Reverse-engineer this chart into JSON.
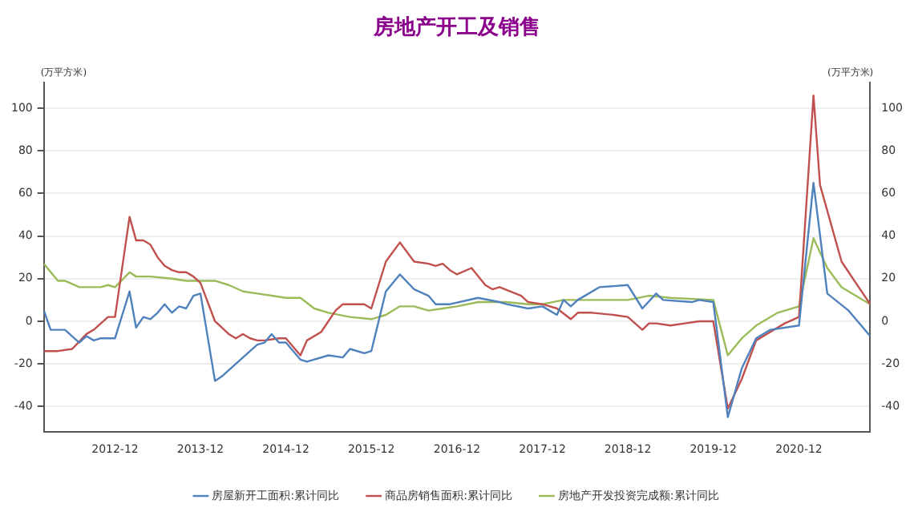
{
  "chart_data": {
    "type": "line",
    "title": "房地产开工及销售",
    "ylabel": "(万平方米)",
    "y2label": "(万平方米)",
    "xlim": [
      "2012-02",
      "2021-10"
    ],
    "xticks": [
      "2012-12",
      "2013-12",
      "2014-12",
      "2015-12",
      "2016-12",
      "2017-12",
      "2018-12",
      "2019-12",
      "2020-12"
    ],
    "ylim": [
      -52,
      112
    ],
    "yticks": [
      -40,
      -20,
      0,
      20,
      40,
      60,
      80,
      100
    ],
    "y2lim": [
      -52,
      112
    ],
    "y2ticks": [
      -40,
      -20,
      0,
      20,
      40,
      60,
      80,
      100
    ],
    "grid": "y",
    "legend": "bottom",
    "marker": "none",
    "line_style": "solid",
    "series": [
      {
        "name": "房屋新开工面积:累计同比",
        "color": "#4f81bd",
        "x": [
          "2012-02",
          "2012-03",
          "2012-05",
          "2012-07",
          "2012-08",
          "2012-09",
          "2012-10",
          "2012-12",
          "2013-02",
          "2013-03",
          "2013-04",
          "2013-05",
          "2013-06",
          "2013-07",
          "2013-08",
          "2013-09",
          "2013-10",
          "2013-11",
          "2013-12",
          "2014-02",
          "2014-03",
          "2014-05",
          "2014-07",
          "2014-08",
          "2014-09",
          "2014-10",
          "2014-11",
          "2014-12",
          "2015-02",
          "2015-03",
          "2015-06",
          "2015-08",
          "2015-09",
          "2015-11",
          "2015-12",
          "2016-02",
          "2016-04",
          "2016-06",
          "2016-08",
          "2016-09",
          "2016-11",
          "2017-03",
          "2017-06",
          "2017-07",
          "2017-10",
          "2017-12",
          "2018-02",
          "2018-03",
          "2018-04",
          "2018-05",
          "2018-08",
          "2018-12",
          "2019-02",
          "2019-04",
          "2019-05",
          "2019-09",
          "2019-10",
          "2019-12",
          "2020-02",
          "2020-04",
          "2020-06",
          "2020-08",
          "2020-12",
          "2021-02",
          "2021-04",
          "2021-07",
          "2021-09",
          "2021-10"
        ],
        "values": [
          5,
          -4,
          -4,
          -10,
          -7,
          -9,
          -8,
          -8,
          14,
          -3,
          2,
          1,
          4,
          8,
          4,
          7,
          6,
          12,
          13,
          -28,
          -26,
          -20,
          -14,
          -11,
          -10,
          -6,
          -10,
          -10,
          -18,
          -19,
          -16,
          -17,
          -13,
          -15,
          -14,
          14,
          22,
          15,
          12,
          8,
          8,
          11,
          9,
          8,
          6,
          7,
          3,
          10,
          7,
          10,
          16,
          17,
          6,
          13,
          10,
          9,
          10,
          9,
          -45,
          -22,
          -8,
          -4,
          -2,
          65,
          13,
          5,
          -3,
          -7
        ]
      },
      {
        "name": "商品房销售面积:累计同比",
        "color": "#c0504d",
        "x": [
          "2012-02",
          "2012-04",
          "2012-06",
          "2012-08",
          "2012-09",
          "2012-11",
          "2012-12",
          "2013-02",
          "2013-03",
          "2013-04",
          "2013-05",
          "2013-06",
          "2013-07",
          "2013-08",
          "2013-09",
          "2013-10",
          "2013-11",
          "2013-12",
          "2014-02",
          "2014-04",
          "2014-05",
          "2014-06",
          "2014-07",
          "2014-08",
          "2014-09",
          "2014-11",
          "2014-12",
          "2015-02",
          "2015-03",
          "2015-05",
          "2015-07",
          "2015-08",
          "2015-11",
          "2015-12",
          "2016-02",
          "2016-04",
          "2016-06",
          "2016-08",
          "2016-09",
          "2016-10",
          "2016-11",
          "2016-12",
          "2017-02",
          "2017-04",
          "2017-05",
          "2017-06",
          "2017-09",
          "2017-10",
          "2017-12",
          "2018-02",
          "2018-04",
          "2018-05",
          "2018-07",
          "2018-10",
          "2018-12",
          "2019-02",
          "2019-03",
          "2019-04",
          "2019-06",
          "2019-08",
          "2019-10",
          "2019-12",
          "2020-02",
          "2020-04",
          "2020-06",
          "2020-08",
          "2020-10",
          "2020-12",
          "2021-02",
          "2021-03",
          "2021-06",
          "2021-08",
          "2021-10"
        ],
        "values": [
          -14,
          -14,
          -13,
          -6,
          -4,
          2,
          2,
          49,
          38,
          38,
          36,
          30,
          26,
          24,
          23,
          23,
          21,
          18,
          0,
          -6,
          -8,
          -6,
          -8,
          -9,
          -9,
          -8,
          -8,
          -16,
          -9,
          -5,
          5,
          8,
          8,
          6,
          28,
          37,
          28,
          27,
          26,
          27,
          24,
          22,
          25,
          17,
          15,
          16,
          12,
          9,
          8,
          6,
          1,
          4,
          4,
          3,
          2,
          -4,
          -1,
          -1,
          -2,
          -1,
          0,
          0,
          -41,
          -27,
          -9,
          -5,
          -1,
          2,
          106,
          64,
          28,
          18,
          8
        ]
      },
      {
        "name": "房地产开发投资完成额:累计同比",
        "color": "#9bbb59",
        "x": [
          "2012-02",
          "2012-04",
          "2012-05",
          "2012-07",
          "2012-10",
          "2012-11",
          "2012-12",
          "2013-02",
          "2013-03",
          "2013-05",
          "2013-08",
          "2013-10",
          "2013-12",
          "2014-02",
          "2014-04",
          "2014-06",
          "2014-08",
          "2014-10",
          "2014-12",
          "2015-02",
          "2015-04",
          "2015-06",
          "2015-09",
          "2015-12",
          "2016-02",
          "2016-04",
          "2016-06",
          "2016-08",
          "2016-10",
          "2016-12",
          "2017-03",
          "2017-07",
          "2017-10",
          "2017-12",
          "2018-03",
          "2018-06",
          "2018-12",
          "2019-03",
          "2019-06",
          "2019-12",
          "2020-02",
          "2020-04",
          "2020-06",
          "2020-09",
          "2020-12",
          "2021-02",
          "2021-04",
          "2021-06",
          "2021-10"
        ],
        "values": [
          27,
          19,
          19,
          16,
          16,
          17,
          16,
          23,
          21,
          21,
          20,
          19,
          19,
          19,
          17,
          14,
          13,
          12,
          11,
          11,
          6,
          4,
          2,
          1,
          3,
          7,
          7,
          5,
          6,
          7,
          9,
          9,
          8,
          8,
          10,
          10,
          10,
          12,
          11,
          10,
          -16,
          -8,
          -2,
          4,
          7,
          39,
          25,
          16,
          8
        ]
      }
    ]
  }
}
